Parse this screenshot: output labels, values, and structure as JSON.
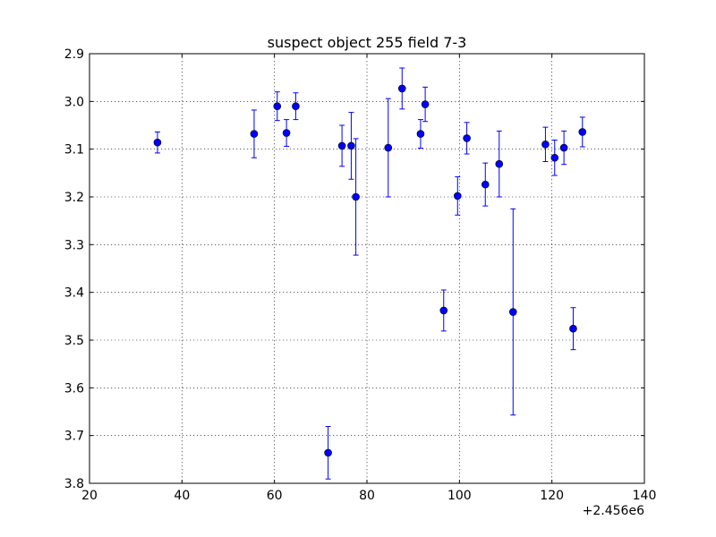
{
  "chart_data": {
    "type": "scatter",
    "title": "suspect object 255 field 7-3",
    "xlabel": "",
    "ylabel": "",
    "x_offset_label": "+2.456e6",
    "xlim": [
      20,
      140
    ],
    "ylim": [
      2.9,
      3.8
    ],
    "y_inverted": true,
    "grid": true,
    "x_ticks": [
      "20",
      "40",
      "60",
      "80",
      "100",
      "120",
      "140"
    ],
    "y_ticks": [
      "2.9",
      "3.0",
      "3.1",
      "3.2",
      "3.3",
      "3.4",
      "3.5",
      "3.6",
      "3.7",
      "3.8"
    ],
    "marker_color": "#0000ff",
    "error_bar_color": "#0000ff",
    "series": [
      {
        "x": [
          34.7,
          55.6,
          60.6,
          62.6,
          64.6,
          71.6,
          74.6,
          76.6,
          77.6,
          84.6,
          87.6,
          91.6,
          92.6,
          96.6,
          99.6,
          101.6,
          105.6,
          108.6,
          111.6,
          118.6,
          120.6,
          122.6,
          124.6,
          126.6
        ],
        "y": [
          3.086,
          3.068,
          3.01,
          3.066,
          3.01,
          3.736,
          3.093,
          3.093,
          3.2,
          3.097,
          2.973,
          3.068,
          3.006,
          3.438,
          3.198,
          3.077,
          3.174,
          3.131,
          3.441,
          3.09,
          3.118,
          3.097,
          3.476,
          3.064
        ],
        "err": [
          0.022,
          0.05,
          0.03,
          0.028,
          0.028,
          0.055,
          0.043,
          0.07,
          0.122,
          0.103,
          0.043,
          0.03,
          0.036,
          0.043,
          0.04,
          0.033,
          0.045,
          0.069,
          0.216,
          0.036,
          0.037,
          0.035,
          0.044,
          0.031
        ]
      }
    ]
  }
}
